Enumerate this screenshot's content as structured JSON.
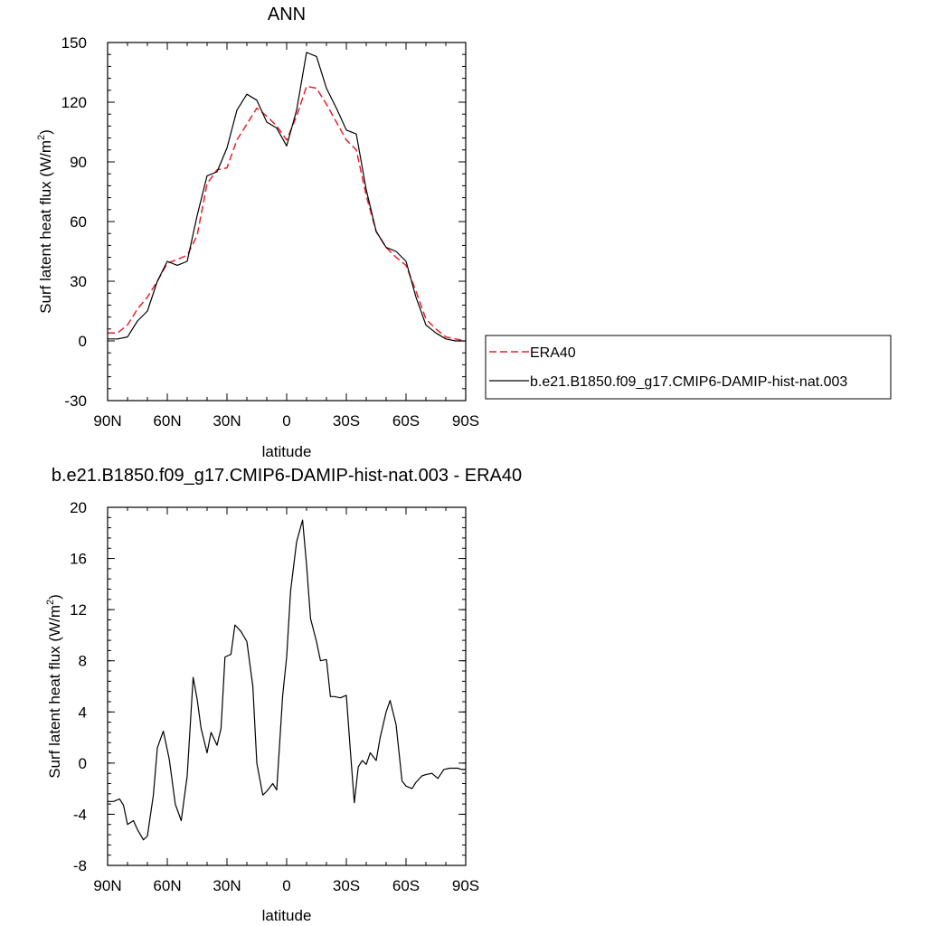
{
  "colors": {
    "era40": "#e8202a",
    "model": "#000000",
    "frame": "#000000"
  },
  "legend": {
    "placement": "right",
    "entries": [
      {
        "label": "ERA40",
        "color": "#e8202a",
        "style": "dashed"
      },
      {
        "label": "b.e21.B1850.f09_g17.CMIP6-DAMIP-hist-nat.003",
        "color": "#000000",
        "style": "solid"
      }
    ]
  },
  "chart_data": [
    {
      "type": "line",
      "title": "ANN",
      "xlabel": "latitude",
      "ylabel_main": "Surf latent heat flux (W/m",
      "ylabel_sup": "2",
      "ylabel_close": ")",
      "xlim": [
        90,
        -90
      ],
      "ylim": [
        -30,
        150
      ],
      "xticks": [
        90,
        60,
        30,
        0,
        -30,
        -60,
        -90
      ],
      "xtick_labels": [
        "90N",
        "60N",
        "30N",
        "0",
        "30S",
        "60S",
        "90S"
      ],
      "yticks": [
        -30,
        0,
        30,
        60,
        90,
        120,
        150
      ],
      "ytick_labels": [
        "-30",
        "0",
        "30",
        "60",
        "90",
        "120",
        "150"
      ],
      "grid": false,
      "series": [
        {
          "name": "ERA40",
          "color": "#e8202a",
          "dash": true,
          "x": [
            90,
            85,
            80,
            75,
            70,
            65,
            60,
            55,
            50,
            45,
            40,
            35,
            30,
            25,
            20,
            15,
            10,
            5,
            0,
            -5,
            -10,
            -15,
            -20,
            -25,
            -30,
            -35,
            -40,
            -45,
            -50,
            -55,
            -60,
            -65,
            -70,
            -75,
            -80,
            -85,
            -90
          ],
          "y": [
            4,
            4,
            8,
            16,
            22,
            30,
            39,
            41,
            43,
            53,
            79,
            86,
            87,
            101,
            109,
            117,
            113,
            108,
            101,
            113,
            128,
            127,
            119,
            110,
            101,
            96,
            73,
            55,
            47,
            42,
            38,
            25,
            11,
            6,
            2,
            1,
            0
          ]
        },
        {
          "name": "b.e21.B1850.f09_g17.CMIP6-DAMIP-hist-nat.003",
          "color": "#000000",
          "dash": false,
          "x": [
            90,
            85,
            80,
            75,
            70,
            65,
            60,
            55,
            50,
            45,
            40,
            35,
            30,
            25,
            20,
            15,
            10,
            5,
            0,
            -5,
            -10,
            -15,
            -20,
            -25,
            -30,
            -35,
            -40,
            -45,
            -50,
            -55,
            -60,
            -65,
            -70,
            -75,
            -80,
            -85,
            -90
          ],
          "y": [
            1,
            1,
            2,
            10,
            15,
            30,
            40,
            38,
            40,
            63,
            83,
            85,
            97,
            116,
            124,
            121,
            110,
            107,
            98,
            116,
            145,
            143,
            127,
            117,
            106,
            104,
            76,
            55,
            47,
            45,
            40,
            22,
            8,
            4,
            1,
            0,
            0
          ]
        }
      ]
    },
    {
      "type": "line",
      "title": "b.e21.B1850.f09_g17.CMIP6-DAMIP-hist-nat.003 - ERA40",
      "xlabel": "latitude",
      "ylabel_main": "Surf latent heat flux (W/m",
      "ylabel_sup": "2",
      "ylabel_close": ")",
      "xlim": [
        90,
        -90
      ],
      "ylim": [
        -8,
        20
      ],
      "xticks": [
        90,
        60,
        30,
        0,
        -30,
        -60,
        -90
      ],
      "xtick_labels": [
        "90N",
        "60N",
        "30N",
        "0",
        "30S",
        "60S",
        "90S"
      ],
      "yticks": [
        -8,
        -4,
        0,
        4,
        8,
        12,
        16,
        20
      ],
      "ytick_labels": [
        "-8",
        "-4",
        "0",
        "4",
        "8",
        "12",
        "16",
        "20"
      ],
      "grid": false,
      "series": [
        {
          "name": "b.e21.B1850.f09_g17.CMIP6-DAMIP-hist-nat.003 - ERA40",
          "color": "#000000",
          "dash": false,
          "x": [
            90,
            87,
            84,
            82,
            80,
            77,
            75,
            72,
            70,
            67,
            65,
            62,
            59,
            56,
            53,
            50,
            47,
            45,
            43,
            40,
            38,
            35,
            33,
            31,
            28,
            26,
            23,
            20,
            17,
            15,
            12,
            10,
            7,
            5,
            2,
            0,
            -2,
            -5,
            -8,
            -10,
            -12,
            -15,
            -17,
            -20,
            -22,
            -24,
            -27,
            -30,
            -32,
            -34,
            -36,
            -38,
            -40,
            -42,
            -45,
            -47,
            -50,
            -52,
            -55,
            -58,
            -60,
            -63,
            -65,
            -68,
            -70,
            -73,
            -76,
            -79,
            -82,
            -84,
            -86,
            -88,
            -90
          ],
          "y": [
            -3,
            -3,
            -2.8,
            -3.3,
            -4.8,
            -4.5,
            -5.2,
            -6.0,
            -5.7,
            -2.5,
            1.2,
            2.5,
            0.3,
            -3.2,
            -4.5,
            -1.0,
            6.7,
            5.0,
            2.7,
            0.8,
            2.4,
            1.4,
            2.7,
            8.3,
            8.5,
            10.8,
            10.3,
            9.5,
            6.0,
            0.0,
            -2.5,
            -2.2,
            -1.6,
            -2.1,
            5.3,
            8.3,
            13.5,
            17.3,
            19.0,
            15.5,
            11.3,
            9.5,
            8.0,
            8.1,
            5.2,
            5.2,
            5.1,
            5.3,
            1.0,
            -3.1,
            -0.3,
            0.2,
            -0.1,
            0.8,
            0.2,
            2.0,
            4.0,
            4.9,
            3.0,
            -1.4,
            -1.8,
            -2.0,
            -1.5,
            -1.0,
            -0.9,
            -0.8,
            -1.2,
            -0.5,
            -0.4,
            -0.4,
            -0.4,
            -0.5,
            -0.5
          ]
        }
      ]
    }
  ]
}
